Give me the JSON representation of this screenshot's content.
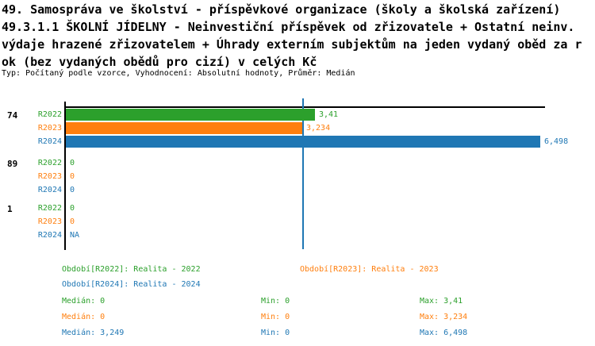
{
  "title": {
    "line1": "49. Samospráva ve školství - příspěvkové organizace (školy a školská zařízení)",
    "line2": "49.3.1.1 ŠKOLNÍ JÍDELNY - Neinvestiční příspěvek od zřizovatele + Ostatní neinv.",
    "line3": "výdaje hrazené zřizovatelem + Úhrady externím subjektům na jeden vydaný oběd za r",
    "line4": "ok (bez vydaných obědů pro cizí) v celých Kč",
    "meta": "Typ: Počítaný podle vzorce, Vyhodnocení: Absolutní hodnoty, Průměr: Medián"
  },
  "colors": {
    "r2022": "#2ca02c",
    "r2023": "#ff7f0e",
    "r2024": "#1f77b4",
    "axis": "#000000",
    "median_line": "#1f77b4",
    "text": "#000000",
    "background": "#ffffff"
  },
  "chart_data": {
    "type": "bar",
    "orientation": "horizontal",
    "title": "49. Samospráva ve školství - příspěvkové organizace (školy a školská zařízení) 49.3.1.1 ŠKOLNÍ JÍDELNY - Neinvestiční příspěvek od zřizovatele + Ostatní neinv. výdaje hrazené zřizovatelem + Úhrady externím subjektům na jeden vydaný oběd za rok (bez vydaných obědů pro cizí) v celých Kč",
    "subtitle": "Typ: Počítaný podle vzorce, Vyhodnocení: Absolutní hodnoty, Průměr: Medián",
    "axis": {
      "min": 0,
      "tick_label": "0",
      "xlim": [
        0,
        6.498
      ],
      "grid": false
    },
    "median_line": {
      "value": 3.249,
      "series": "R2024"
    },
    "groups": [
      {
        "label": "74",
        "bars": [
          {
            "series": "R2022",
            "value": 3.41,
            "display": "3,41"
          },
          {
            "series": "R2023",
            "value": 3.234,
            "display": "3,234"
          },
          {
            "series": "R2024",
            "value": 6.498,
            "display": "6,498"
          }
        ]
      },
      {
        "label": "89",
        "bars": [
          {
            "series": "R2022",
            "value": 0,
            "display": "0"
          },
          {
            "series": "R2023",
            "value": 0,
            "display": "0"
          },
          {
            "series": "R2024",
            "value": 0,
            "display": "0"
          }
        ]
      },
      {
        "label": "1",
        "bars": [
          {
            "series": "R2022",
            "value": 0,
            "display": "0"
          },
          {
            "series": "R2023",
            "value": 0,
            "display": "0"
          },
          {
            "series": "R2024",
            "value": null,
            "display": "NA"
          }
        ]
      }
    ],
    "legend": [
      {
        "series": "R2022",
        "label": "Období[R2022]: Realita - 2022"
      },
      {
        "series": "R2023",
        "label": "Období[R2023]: Realita - 2023"
      },
      {
        "series": "R2024",
        "label": "Období[R2024]: Realita - 2024"
      }
    ],
    "stats": [
      {
        "series": "R2022",
        "median": "Medián: 0",
        "min": "Min: 0",
        "max": "Max: 3,41"
      },
      {
        "series": "R2023",
        "median": "Medián: 0",
        "min": "Min: 0",
        "max": "Max: 3,234"
      },
      {
        "series": "R2024",
        "median": "Medián: 3,249",
        "min": "Min: 0",
        "max": "Max: 6,498"
      }
    ]
  }
}
